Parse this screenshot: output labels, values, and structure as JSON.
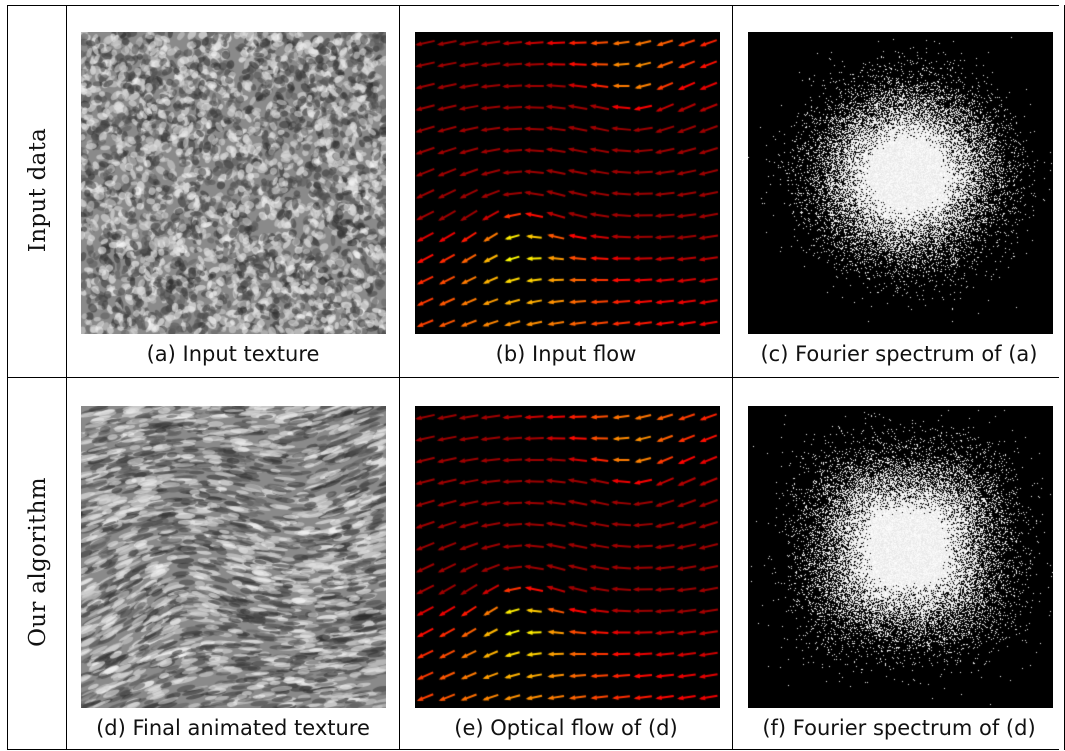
{
  "rows": [
    {
      "label": "Input data",
      "panels": [
        {
          "kind": "texture",
          "style": "isotropic",
          "caption": "(a) Input texture"
        },
        {
          "kind": "flow",
          "caption": "(b) Input flow"
        },
        {
          "kind": "spectrum",
          "caption": "(c) Fourier spectrum of (a)"
        }
      ]
    },
    {
      "label": "Our algorithm",
      "panels": [
        {
          "kind": "texture",
          "style": "swirl",
          "caption": "(d) Final animated texture"
        },
        {
          "kind": "flow",
          "caption": "(e) Optical flow of (d)"
        },
        {
          "kind": "spectrum",
          "caption": "(f) Fourier spectrum of (d)"
        }
      ]
    }
  ],
  "colors": {
    "border": "#000000",
    "panel_bg": "#000000",
    "texture_mid": "#8a8a8a"
  },
  "flow_colormap": "jet"
}
